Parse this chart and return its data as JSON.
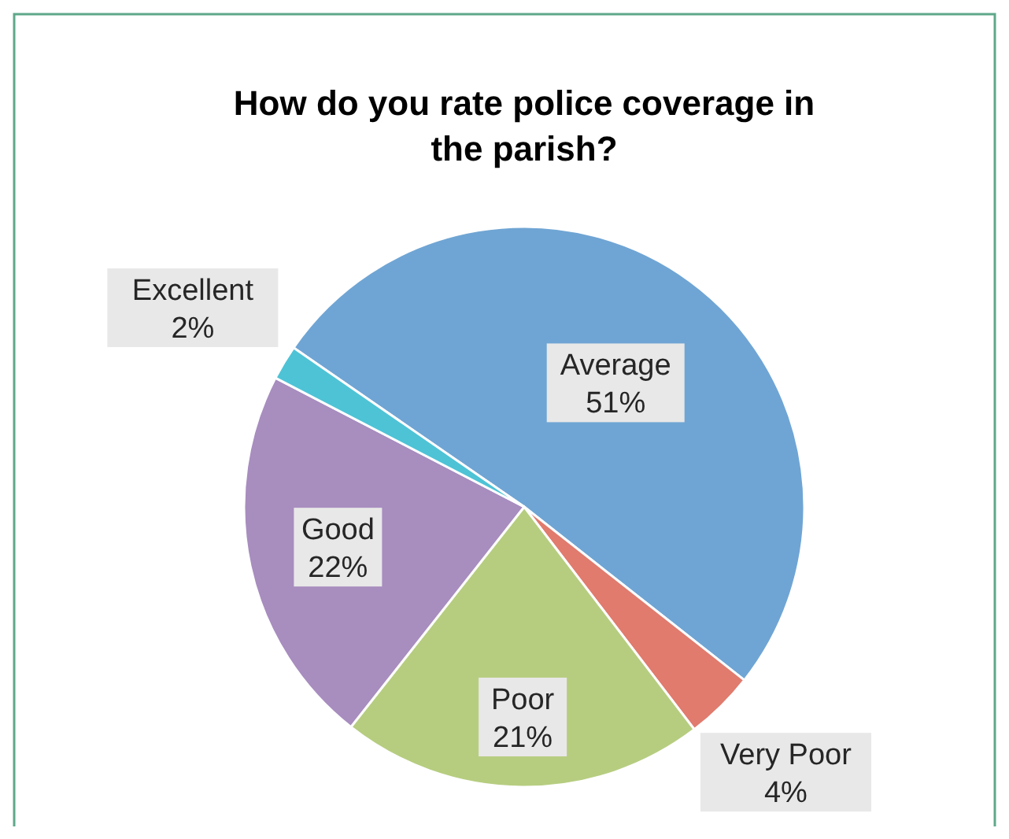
{
  "chart_data": {
    "type": "pie",
    "title": "How do you rate police coverage in the parish?",
    "categories": [
      "Average",
      "Very Poor",
      "Poor",
      "Good",
      "Excellent"
    ],
    "values": [
      51,
      4,
      21,
      22,
      2
    ],
    "value_labels": [
      "51%",
      "4%",
      "21%",
      "22%",
      "2%"
    ],
    "colors": [
      "#6fa5d4",
      "#e07b6e",
      "#b6cd80",
      "#a88dbf",
      "#4ec3d6"
    ]
  }
}
